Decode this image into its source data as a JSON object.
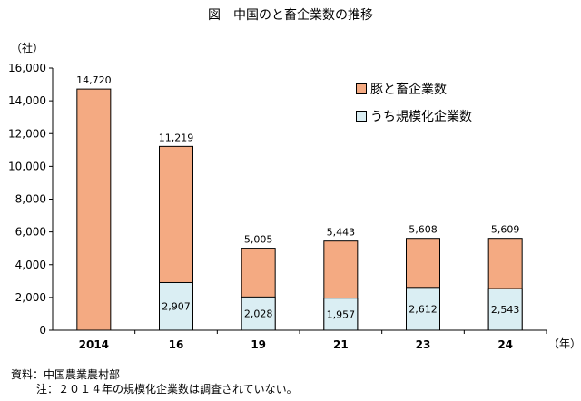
{
  "chart_data": {
    "type": "bar",
    "title": "図　中国のと畜企業数の推移",
    "ylabel": "（社）",
    "xlabel": "（年）",
    "ylim": [
      0,
      16000
    ],
    "yticks": [
      0,
      2000,
      4000,
      6000,
      8000,
      10000,
      12000,
      14000,
      16000
    ],
    "ytick_labels": [
      "0",
      "2,000",
      "4,000",
      "6,000",
      "8,000",
      "10,000",
      "12,000",
      "14,000",
      "16,000"
    ],
    "categories": [
      "2014",
      "16",
      "19",
      "21",
      "23",
      "24"
    ],
    "series": [
      {
        "name": "豚と畜企業数",
        "values": [
          14720,
          11219,
          5005,
          5443,
          5608,
          5609
        ],
        "labels": [
          "14,720",
          "11,219",
          "5,005",
          "5,443",
          "5,608",
          "5,609"
        ]
      },
      {
        "name": "うち規模化企業数",
        "values": [
          null,
          2907,
          2028,
          1957,
          2612,
          2543
        ],
        "labels": [
          "",
          "2,907",
          "2,028",
          "1,957",
          "2,612",
          "2,543"
        ]
      }
    ],
    "legend_position": "top-right",
    "grid": false
  },
  "colors": {
    "total": "#F4AA82",
    "large": "#DAEEF3",
    "border": "#000000"
  },
  "notes": {
    "source": "資料：中国農業農村部",
    "note": "注：２０１４年の規模化企業数は調査されていない。"
  }
}
